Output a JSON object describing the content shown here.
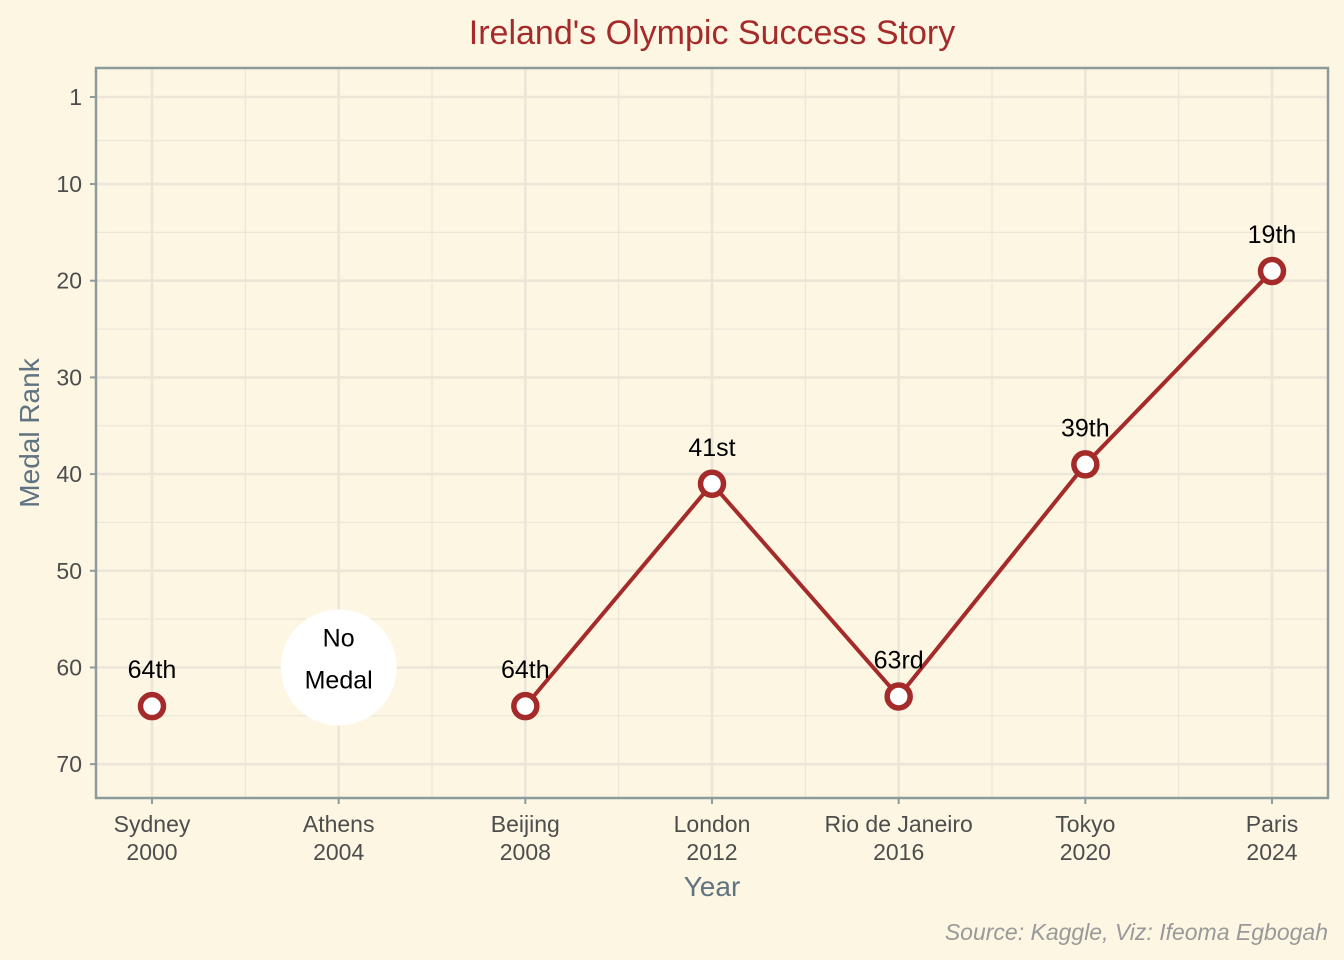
{
  "chart_data": {
    "type": "line",
    "title": "Ireland's Olympic Success Story",
    "xlabel": "Year",
    "ylabel": "Medal Rank",
    "source": "Source: Kaggle, Viz: Ifeoma Egbogah",
    "y_reversed": true,
    "ylim": [
      73.5,
      -2
    ],
    "y_ticks": [
      1,
      10,
      20,
      30,
      40,
      50,
      60,
      70
    ],
    "categories": [
      {
        "city": "Sydney",
        "year": "2000"
      },
      {
        "city": "Athens",
        "year": "2004"
      },
      {
        "city": "Beijing",
        "year": "2008"
      },
      {
        "city": "London",
        "year": "2012"
      },
      {
        "city": "Rio de Janeiro",
        "year": "2016"
      },
      {
        "city": "Tokyo",
        "year": "2020"
      },
      {
        "city": "Paris",
        "year": "2024"
      }
    ],
    "points": [
      {
        "index": 0,
        "rank": 64,
        "label": "64th"
      },
      {
        "index": 2,
        "rank": 64,
        "label": "64th"
      },
      {
        "index": 3,
        "rank": 41,
        "label": "41st"
      },
      {
        "index": 4,
        "rank": 63,
        "label": "63rd"
      },
      {
        "index": 5,
        "rank": 39,
        "label": "39th"
      },
      {
        "index": 6,
        "rank": 19,
        "label": "19th"
      }
    ],
    "line_segment": [
      2,
      3,
      4,
      5,
      6
    ],
    "no_medal": {
      "index": 1,
      "rank": 60,
      "lines": [
        "No",
        "Medal"
      ]
    },
    "grid": true,
    "colors": {
      "background": "#fdf6e3",
      "line": "#a52a2a",
      "title": "#a52a2a",
      "axis_title": "#5f7380",
      "tick_text": "#4d4d4d",
      "grid": "#ebe6d8",
      "axis": "#8c9b9b",
      "caption": "#999999"
    }
  }
}
